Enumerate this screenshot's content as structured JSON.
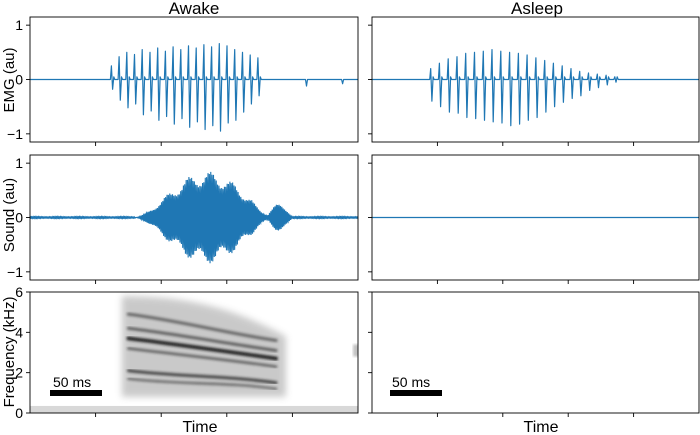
{
  "columns": [
    "Awake",
    "Asleep"
  ],
  "chart_data": [
    {
      "type": "line",
      "panel": "emg-awake",
      "title": "Awake",
      "ylabel": "EMG (au)",
      "xlabel": "",
      "ylim": [
        -1.15,
        1.15
      ],
      "yticks": [
        "1",
        "0",
        "−1"
      ],
      "series": [
        {
          "burst_start": 0.24,
          "burst_end": 0.71,
          "color": "#1f77b4",
          "spike_peaks": [
            0.25,
            0.42,
            0.5,
            0.46,
            0.55,
            0.5,
            0.58,
            0.52,
            0.6,
            0.55,
            0.62,
            0.58,
            0.64,
            0.6,
            0.66,
            0.62,
            0.55,
            0.5,
            0.45,
            0.4
          ],
          "spike_troughs": [
            -0.18,
            -0.38,
            -0.52,
            -0.45,
            -0.65,
            -0.58,
            -0.75,
            -0.68,
            -0.82,
            -0.72,
            -0.88,
            -0.78,
            -0.92,
            -0.85,
            -0.95,
            -0.8,
            -0.75,
            -0.6,
            -0.45,
            -0.3
          ]
        }
      ]
    },
    {
      "type": "line",
      "panel": "emg-asleep",
      "title": "Asleep",
      "ylim": [
        -1.15,
        1.15
      ],
      "series": [
        {
          "burst_start": 0.17,
          "burst_end": 0.76,
          "color": "#1f77b4",
          "spike_peaks": [
            0.2,
            0.3,
            0.38,
            0.42,
            0.48,
            0.5,
            0.52,
            0.55,
            0.52,
            0.5,
            0.48,
            0.45,
            0.4,
            0.35,
            0.3,
            0.25,
            0.2,
            0.15,
            0.12,
            0.1,
            0.08,
            0.05
          ],
          "spike_troughs": [
            -0.4,
            -0.5,
            -0.6,
            -0.62,
            -0.7,
            -0.72,
            -0.75,
            -0.78,
            -0.8,
            -0.85,
            -0.82,
            -0.75,
            -0.7,
            -0.6,
            -0.5,
            -0.42,
            -0.35,
            -0.3,
            -0.2,
            -0.15,
            -0.1,
            -0.05
          ]
        }
      ]
    },
    {
      "type": "line",
      "panel": "sound-awake",
      "ylabel": "Sound (au)",
      "ylim": [
        -1.15,
        1.15
      ],
      "yticks": [
        "1",
        "0",
        "−1"
      ],
      "series": [
        {
          "burst_start": 0.32,
          "burst_end": 0.78,
          "peak_amplitude": 0.85,
          "color": "#1f77b4"
        }
      ]
    },
    {
      "type": "line",
      "panel": "sound-asleep",
      "ylim": [
        -1.15,
        1.15
      ],
      "series": [
        {
          "constant": 0,
          "color": "#1f77b4"
        }
      ]
    },
    {
      "type": "heatmap",
      "panel": "spectrogram-awake",
      "ylabel": "Frequency (kHz)",
      "xlabel": "Time",
      "ylim": [
        0,
        6
      ],
      "yticks": [
        "6",
        "4",
        "2",
        "0"
      ],
      "scale_bar": "50 ms"
    },
    {
      "type": "heatmap",
      "panel": "spectrogram-asleep",
      "xlabel": "Time",
      "ylim": [
        0,
        6
      ],
      "scale_bar": "50 ms"
    }
  ]
}
